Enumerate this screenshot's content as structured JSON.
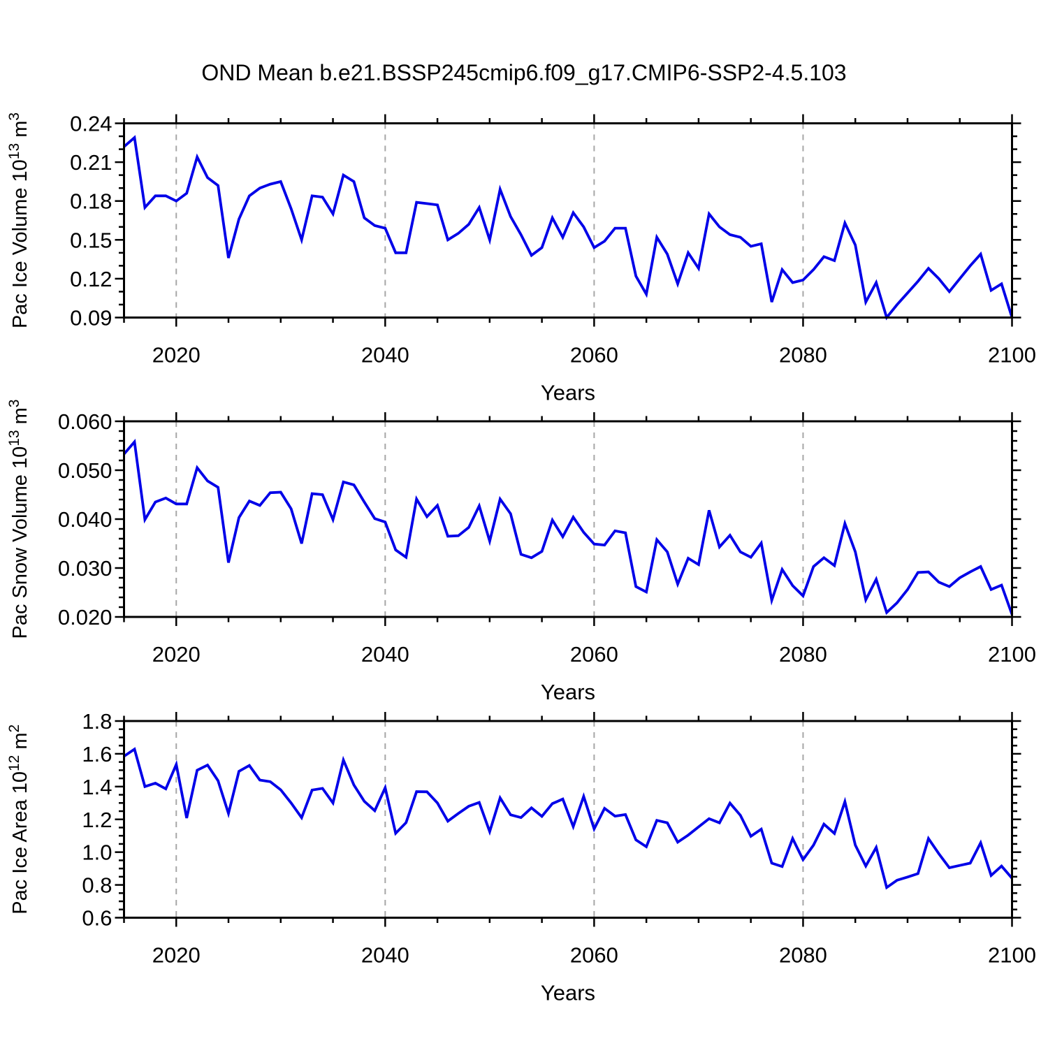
{
  "title": "OND Mean b.e21.BSSP245cmip6.f09_g17.CMIP6-SSP2-4.5.103",
  "style": {
    "line_color": "#0000e8",
    "gridline_color": "#a6a6a6",
    "axis_color": "#000000",
    "text_color": "#000000"
  },
  "chart_data": [
    {
      "type": "line",
      "name": "pac-ice-volume",
      "xlabel": "Years",
      "ylabel": "Pac Ice Volume 10^13 m^3",
      "ylabel_parts": [
        {
          "t": "Pac Ice Volume 10"
        },
        {
          "t": "13",
          "sup": true
        },
        {
          "t": " m"
        },
        {
          "t": "3",
          "sup": true
        }
      ],
      "x_start": 2015,
      "x_end": 2100,
      "x_step": 1,
      "x_major_ticks": [
        2020,
        2040,
        2060,
        2080,
        2100
      ],
      "x_minor_step": 5,
      "gridline_years": [
        2020,
        2040,
        2060,
        2080
      ],
      "ylim": [
        0.09,
        0.24
      ],
      "ytick_labels": [
        "0.24",
        "0.21",
        "0.18",
        "0.15",
        "0.12",
        "0.09"
      ],
      "y_minor_step": 0.01,
      "values": [
        0.222,
        0.229,
        0.175,
        0.184,
        0.184,
        0.18,
        0.186,
        0.214,
        0.198,
        0.192,
        0.136,
        0.166,
        0.184,
        0.19,
        0.193,
        0.195,
        0.174,
        0.15,
        0.184,
        0.183,
        0.17,
        0.2,
        0.195,
        0.167,
        0.161,
        0.159,
        0.14,
        0.14,
        0.179,
        0.178,
        0.177,
        0.15,
        0.155,
        0.162,
        0.175,
        0.15,
        0.189,
        0.168,
        0.154,
        0.138,
        0.144,
        0.167,
        0.152,
        0.171,
        0.16,
        0.144,
        0.149,
        0.159,
        0.159,
        0.122,
        0.108,
        0.152,
        0.139,
        0.116,
        0.14,
        0.128,
        0.17,
        0.16,
        0.154,
        0.152,
        0.145,
        0.147,
        0.102,
        0.127,
        0.117,
        0.119,
        0.127,
        0.137,
        0.134,
        0.163,
        0.146,
        0.102,
        0.117,
        0.09,
        0.1,
        0.109,
        0.118,
        0.128,
        0.12,
        0.11,
        0.12,
        0.13,
        0.139,
        0.111,
        0.116,
        0.09
      ]
    },
    {
      "type": "line",
      "name": "pac-snow-volume",
      "xlabel": "Years",
      "ylabel": "Pac Snow Volume 10^13 m^3",
      "ylabel_parts": [
        {
          "t": "Pac Snow Volume 10"
        },
        {
          "t": "13",
          "sup": true
        },
        {
          "t": " m"
        },
        {
          "t": "3",
          "sup": true
        }
      ],
      "x_start": 2015,
      "x_end": 2100,
      "x_step": 1,
      "x_major_ticks": [
        2020,
        2040,
        2060,
        2080,
        2100
      ],
      "x_minor_step": 5,
      "gridline_years": [
        2020,
        2040,
        2060,
        2080
      ],
      "ylim": [
        0.02,
        0.06
      ],
      "ytick_labels": [
        "0.060",
        "0.050",
        "0.040",
        "0.030",
        "0.020"
      ],
      "y_minor_step": 0.002,
      "values": [
        0.0533,
        0.0558,
        0.0399,
        0.0435,
        0.0443,
        0.0431,
        0.0431,
        0.0505,
        0.0478,
        0.0465,
        0.0311,
        0.0403,
        0.0437,
        0.0428,
        0.0454,
        0.0455,
        0.0421,
        0.035,
        0.0452,
        0.045,
        0.0399,
        0.0476,
        0.047,
        0.0435,
        0.0401,
        0.0394,
        0.0337,
        0.0322,
        0.0441,
        0.0405,
        0.0428,
        0.0365,
        0.0366,
        0.0383,
        0.0427,
        0.0355,
        0.0441,
        0.0411,
        0.0328,
        0.0321,
        0.0334,
        0.0398,
        0.0364,
        0.0404,
        0.0373,
        0.0349,
        0.0347,
        0.0376,
        0.0372,
        0.0262,
        0.0251,
        0.0358,
        0.0333,
        0.0267,
        0.032,
        0.0307,
        0.0418,
        0.0343,
        0.0367,
        0.0333,
        0.0322,
        0.0351,
        0.0234,
        0.0297,
        0.0264,
        0.0243,
        0.0303,
        0.0321,
        0.0305,
        0.0391,
        0.0333,
        0.0235,
        0.0277,
        0.0209,
        0.0229,
        0.0256,
        0.0291,
        0.0292,
        0.0271,
        0.0262,
        0.028,
        0.0292,
        0.0303,
        0.0256,
        0.0265,
        0.0205
      ]
    },
    {
      "type": "line",
      "name": "pac-ice-area",
      "xlabel": "Years",
      "ylabel": "Pac Ice Area 10^12 m^2",
      "ylabel_parts": [
        {
          "t": "Pac Ice Area 10"
        },
        {
          "t": "12",
          "sup": true
        },
        {
          "t": " m"
        },
        {
          "t": "2",
          "sup": true
        }
      ],
      "x_start": 2015,
      "x_end": 2100,
      "x_step": 1,
      "x_major_ticks": [
        2020,
        2040,
        2060,
        2080,
        2100
      ],
      "x_minor_step": 5,
      "gridline_years": [
        2020,
        2040,
        2060,
        2080
      ],
      "ylim": [
        0.6,
        1.8
      ],
      "ytick_labels": [
        "1.8",
        "1.6",
        "1.4",
        "1.2",
        "1.0",
        "0.8",
        "0.6"
      ],
      "y_minor_step": 0.05,
      "values": [
        1.585,
        1.628,
        1.4,
        1.421,
        1.386,
        1.535,
        1.208,
        1.5,
        1.531,
        1.436,
        1.236,
        1.493,
        1.529,
        1.44,
        1.43,
        1.38,
        1.3,
        1.21,
        1.379,
        1.389,
        1.3,
        1.562,
        1.41,
        1.31,
        1.253,
        1.393,
        1.115,
        1.18,
        1.369,
        1.368,
        1.3,
        1.189,
        1.236,
        1.28,
        1.303,
        1.125,
        1.331,
        1.228,
        1.211,
        1.27,
        1.218,
        1.296,
        1.324,
        1.156,
        1.34,
        1.142,
        1.267,
        1.22,
        1.229,
        1.075,
        1.033,
        1.194,
        1.179,
        1.061,
        1.104,
        1.154,
        1.204,
        1.179,
        1.299,
        1.225,
        1.097,
        1.14,
        0.933,
        0.912,
        1.083,
        0.954,
        1.043,
        1.171,
        1.114,
        1.308,
        1.043,
        0.915,
        1.029,
        0.784,
        0.829,
        0.848,
        0.869,
        1.083,
        0.99,
        0.905,
        0.919,
        0.933,
        1.057,
        0.858,
        0.915,
        0.841
      ]
    }
  ]
}
